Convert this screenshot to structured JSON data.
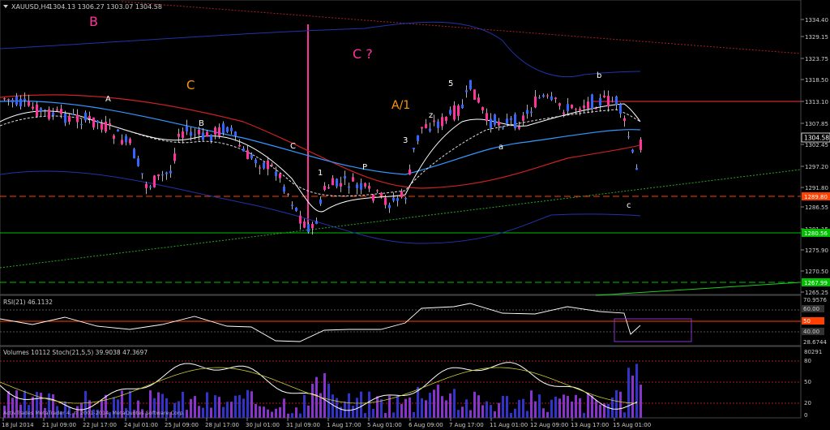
{
  "header": {
    "symbol": "XAUUSD,H4",
    "ohlc": "1304.13 1306.27 1303.07 1304.58"
  },
  "price_axis": {
    "labels": [
      "1334.40",
      "1329.15",
      "1323.75",
      "1318.50",
      "1313.10",
      "1307.85",
      "1302.45",
      "1297.20",
      "1291.80",
      "1286.55",
      "1281.15",
      "1275.90",
      "1270.50",
      "1265.25"
    ],
    "current_price": "1304.58",
    "tags": [
      {
        "text": "1289.80",
        "color": "#ff4000"
      },
      {
        "text": "1280.56",
        "color": "#00c000"
      },
      {
        "text": "1267.99",
        "color": "#00c000"
      }
    ]
  },
  "wave_labels": [
    {
      "text": "B",
      "color": "#ff3399"
    },
    {
      "text": "C",
      "color": "#ff9900"
    },
    {
      "text": "C ?",
      "color": "#ff3399"
    },
    {
      "text": "A/1",
      "color": "#ff9900"
    },
    {
      "text": "A",
      "color": "#ffffff"
    },
    {
      "text": "B",
      "color": "#ffffff"
    },
    {
      "text": "C",
      "color": "#ffffff"
    },
    {
      "text": "1",
      "color": "#ffffff"
    },
    {
      "text": "P",
      "color": "#ffffff"
    },
    {
      "text": "3",
      "color": "#ffffff"
    },
    {
      "text": "z",
      "color": "#ffffff"
    },
    {
      "text": "5",
      "color": "#ffffff"
    },
    {
      "text": "a",
      "color": "#ffffff"
    },
    {
      "text": "b",
      "color": "#ffffff"
    },
    {
      "text": "c",
      "color": "#ffffff"
    }
  ],
  "rsi_panel": {
    "title": "RSI(21) 46.1132",
    "axis_labels": [
      "70.9576",
      "60.00",
      "50",
      "40.00",
      "28.6744"
    ]
  },
  "volume_panel": {
    "title": "Volumes 10112  Stoch(21,5,5) 39.9038 47.3697",
    "axis_labels": [
      "80291",
      "80",
      "50",
      "20",
      "0"
    ]
  },
  "time_axis": [
    "18 Jul 2014",
    "21 Jul 09:00",
    "22 Jul 17:00",
    "24 Jul 01:00",
    "25 Jul 09:00",
    "28 Jul 17:00",
    "30 Jul 01:00",
    "31 Jul 09:00",
    "1 Aug 17:00",
    "5 Aug 01:00",
    "6 Aug 09:00",
    "7 Aug 17:00",
    "11 Aug 01:00",
    "12 Aug 09:00",
    "13 Aug 17:00",
    "15 Aug 01:00"
  ],
  "copyright": "ActivTrades MetaTrader 4, © 2001-2014, MetaQuotes Software Corp.",
  "colors": {
    "bull_candle": "#3366ff",
    "bear_candle": "#ff3399",
    "up_volume": "#3333cc",
    "down_volume": "#8833cc"
  }
}
